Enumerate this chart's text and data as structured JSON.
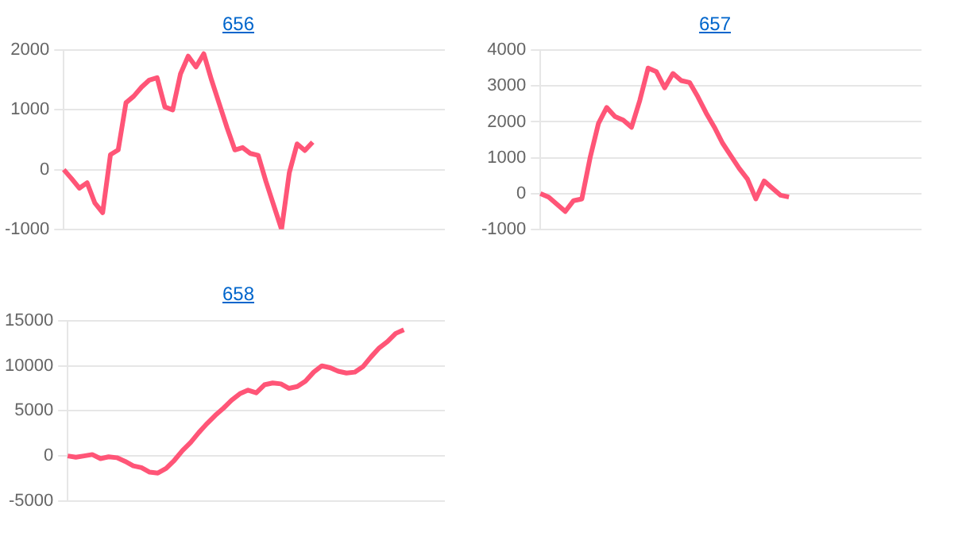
{
  "chart_data": [
    {
      "type": "line",
      "title": "656",
      "color": "#ff5577",
      "marker": "none",
      "grid": "y",
      "tick_labels": "y",
      "ylim": [
        -1000,
        2000
      ],
      "yticks": [
        -1000,
        0,
        1000,
        2000
      ],
      "categories": [
        null,
        null,
        null,
        null,
        null,
        null,
        null,
        null,
        null,
        null,
        null,
        null,
        null,
        null,
        null,
        null,
        null,
        null,
        null,
        null,
        null,
        null,
        null,
        null,
        null,
        null,
        null,
        null,
        null,
        null,
        null,
        null,
        null,
        null,
        null,
        null,
        null,
        null,
        null,
        null,
        null,
        null,
        null,
        null,
        null,
        null,
        null,
        null,
        null,
        null
      ],
      "values": [
        0,
        -150,
        -310,
        -220,
        -560,
        -720,
        250,
        330,
        1120,
        1230,
        1380,
        1500,
        1540,
        1050,
        1000,
        1600,
        1900,
        1720,
        1940,
        1500,
        1100,
        700,
        330,
        370,
        270,
        240,
        -200,
        -600,
        -1000,
        -50,
        430,
        320,
        460,
        null,
        null,
        null,
        null,
        null,
        null,
        null,
        null,
        null,
        null,
        null,
        null,
        null,
        null,
        null,
        null,
        null
      ]
    },
    {
      "type": "line",
      "title": "657",
      "color": "#ff5577",
      "marker": "none",
      "grid": "y",
      "tick_labels": "y",
      "ylim": [
        -1000,
        4000
      ],
      "yticks": [
        -1000,
        0,
        1000,
        2000,
        3000,
        4000
      ],
      "categories": [
        null,
        null,
        null,
        null,
        null,
        null,
        null,
        null,
        null,
        null,
        null,
        null,
        null,
        null,
        null,
        null,
        null,
        null,
        null,
        null,
        null,
        null,
        null,
        null,
        null,
        null,
        null,
        null,
        null,
        null,
        null,
        null,
        null,
        null,
        null,
        null,
        null,
        null,
        null,
        null,
        null,
        null,
        null,
        null,
        null,
        null,
        null
      ],
      "values": [
        0,
        -100,
        -300,
        -500,
        -200,
        -150,
        1000,
        1950,
        2400,
        2150,
        2050,
        1850,
        2600,
        3500,
        3400,
        2950,
        3350,
        3150,
        3100,
        2700,
        2250,
        1850,
        1400,
        1050,
        700,
        400,
        -150,
        350,
        150,
        -50,
        -100,
        null,
        null,
        null,
        null,
        null,
        null,
        null,
        null,
        null,
        null,
        null,
        null,
        null,
        null,
        null,
        null
      ]
    },
    {
      "type": "line",
      "title": "658",
      "color": "#ff5577",
      "marker": "none",
      "grid": "y",
      "tick_labels": "y",
      "ylim": [
        -5000,
        15000
      ],
      "yticks": [
        -5000,
        0,
        5000,
        10000,
        15000
      ],
      "categories": [
        null,
        null,
        null,
        null,
        null,
        null,
        null,
        null,
        null,
        null,
        null,
        null,
        null,
        null,
        null,
        null,
        null,
        null,
        null,
        null,
        null,
        null,
        null,
        null,
        null,
        null,
        null,
        null,
        null,
        null,
        null,
        null,
        null,
        null,
        null,
        null,
        null,
        null,
        null,
        null,
        null,
        null,
        null,
        null,
        null,
        null,
        null
      ],
      "values": [
        0,
        -150,
        0,
        150,
        -300,
        -100,
        -200,
        -600,
        -1100,
        -1300,
        -1800,
        -1900,
        -1400,
        -500,
        600,
        1500,
        2600,
        3600,
        4500,
        5300,
        6200,
        6900,
        7300,
        7000,
        7900,
        8100,
        8000,
        7500,
        7700,
        8300,
        9300,
        10000,
        9800,
        9400,
        9200,
        9300,
        9900,
        11000,
        12000,
        12700,
        13600,
        14000,
        null,
        null,
        null,
        null,
        null
      ]
    }
  ]
}
